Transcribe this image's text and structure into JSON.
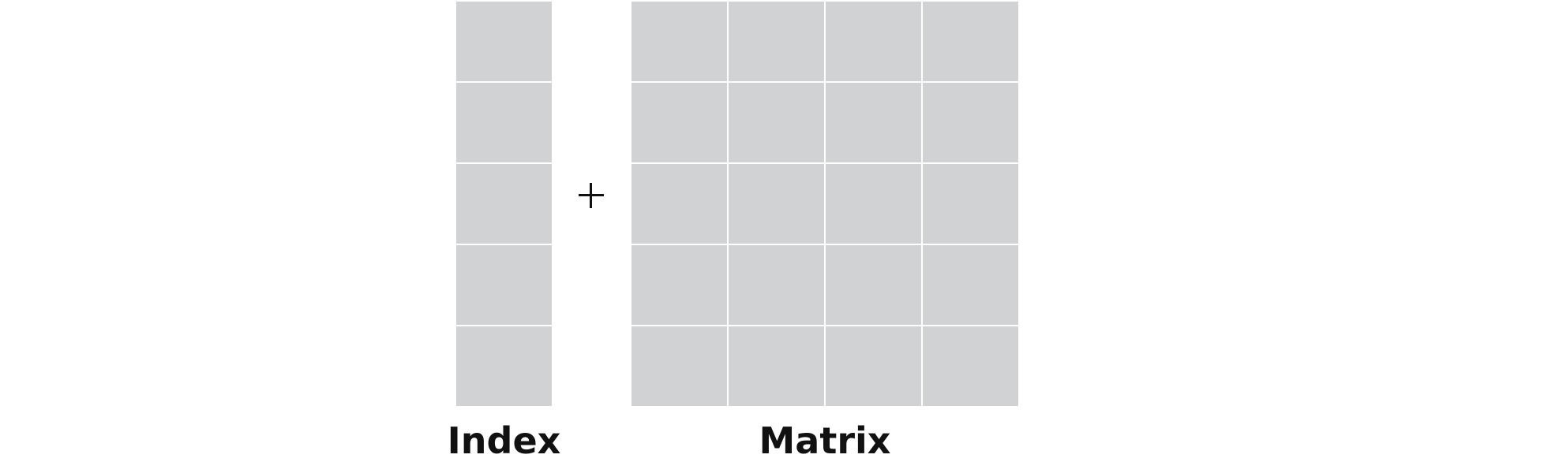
{
  "diagram": {
    "index_block": {
      "label": "Index",
      "rows": 5,
      "columns": 1,
      "cell_color": "#d1d2d4"
    },
    "operator": {
      "symbol": "+"
    },
    "matrix_block": {
      "label": "Matrix",
      "rows": 5,
      "columns": 4,
      "cell_color": "#d1d2d4"
    }
  }
}
